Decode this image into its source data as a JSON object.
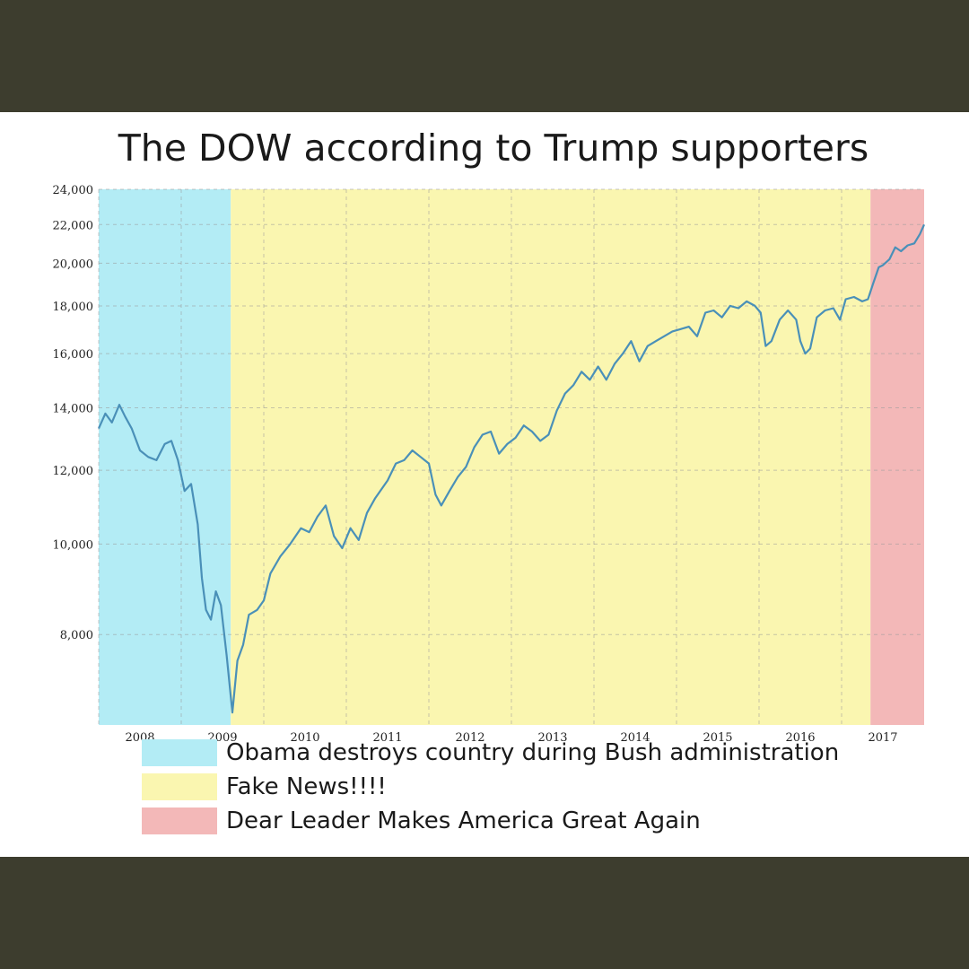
{
  "colors": {
    "frame": "#3d3d2e",
    "panel": "#ffffff",
    "line": "#4a90b8",
    "grid": "#9a9a9a"
  },
  "chart_data": {
    "type": "line",
    "title": "The DOW according to Trump supporters",
    "xlabel": "",
    "ylabel": "",
    "y_scale": "log",
    "ylim": [
      6400,
      24000
    ],
    "xlim": [
      2007.5,
      2017.5
    ],
    "grid": true,
    "y_ticks": [
      8000,
      10000,
      12000,
      14000,
      16000,
      18000,
      20000,
      22000,
      24000
    ],
    "y_tick_labels": [
      "8,000",
      "10,000",
      "12,000",
      "14,000",
      "16,000",
      "18,000",
      "20,000",
      "22,000",
      "24,000"
    ],
    "x_ticks": [
      2008,
      2009,
      2010,
      2011,
      2012,
      2013,
      2014,
      2015,
      2016,
      2017
    ],
    "x_tick_labels": [
      "2008",
      "2009",
      "2010",
      "2011",
      "2012",
      "2013",
      "2014",
      "2015",
      "2016",
      "2017"
    ],
    "regions": [
      {
        "label": "Obama destroys country during Bush administration",
        "from": 2007.5,
        "to": 2009.1,
        "color": "#b3ecf5"
      },
      {
        "label": "Fake News!!!!",
        "from": 2009.1,
        "to": 2016.85,
        "color": "#faf6b0"
      },
      {
        "label": "Dear Leader Makes America Great Again",
        "from": 2016.85,
        "to": 2017.5,
        "color": "#f3b8b8"
      }
    ],
    "series": [
      {
        "points": [
          [
            2007.5,
            13300
          ],
          [
            2007.58,
            13800
          ],
          [
            2007.66,
            13500
          ],
          [
            2007.75,
            14100
          ],
          [
            2007.82,
            13700
          ],
          [
            2007.9,
            13300
          ],
          [
            2008.0,
            12600
          ],
          [
            2008.1,
            12400
          ],
          [
            2008.2,
            12300
          ],
          [
            2008.3,
            12800
          ],
          [
            2008.38,
            12900
          ],
          [
            2008.46,
            12300
          ],
          [
            2008.54,
            11400
          ],
          [
            2008.62,
            11600
          ],
          [
            2008.7,
            10500
          ],
          [
            2008.75,
            9200
          ],
          [
            2008.8,
            8500
          ],
          [
            2008.86,
            8300
          ],
          [
            2008.92,
            8900
          ],
          [
            2008.98,
            8600
          ],
          [
            2009.05,
            7600
          ],
          [
            2009.12,
            6600
          ],
          [
            2009.18,
            7500
          ],
          [
            2009.25,
            7800
          ],
          [
            2009.32,
            8400
          ],
          [
            2009.42,
            8500
          ],
          [
            2009.5,
            8700
          ],
          [
            2009.58,
            9300
          ],
          [
            2009.7,
            9700
          ],
          [
            2009.82,
            10000
          ],
          [
            2009.95,
            10400
          ],
          [
            2010.05,
            10300
          ],
          [
            2010.15,
            10700
          ],
          [
            2010.25,
            11000
          ],
          [
            2010.35,
            10200
          ],
          [
            2010.45,
            9900
          ],
          [
            2010.55,
            10400
          ],
          [
            2010.65,
            10100
          ],
          [
            2010.75,
            10800
          ],
          [
            2010.85,
            11200
          ],
          [
            2011.0,
            11700
          ],
          [
            2011.1,
            12200
          ],
          [
            2011.2,
            12300
          ],
          [
            2011.3,
            12600
          ],
          [
            2011.4,
            12400
          ],
          [
            2011.5,
            12200
          ],
          [
            2011.58,
            11300
          ],
          [
            2011.65,
            11000
          ],
          [
            2011.75,
            11400
          ],
          [
            2011.85,
            11800
          ],
          [
            2011.95,
            12100
          ],
          [
            2012.05,
            12700
          ],
          [
            2012.15,
            13100
          ],
          [
            2012.25,
            13200
          ],
          [
            2012.35,
            12500
          ],
          [
            2012.45,
            12800
          ],
          [
            2012.55,
            13000
          ],
          [
            2012.65,
            13400
          ],
          [
            2012.75,
            13200
          ],
          [
            2012.85,
            12900
          ],
          [
            2012.95,
            13100
          ],
          [
            2013.05,
            13900
          ],
          [
            2013.15,
            14500
          ],
          [
            2013.25,
            14800
          ],
          [
            2013.35,
            15300
          ],
          [
            2013.45,
            15000
          ],
          [
            2013.55,
            15500
          ],
          [
            2013.65,
            15000
          ],
          [
            2013.75,
            15600
          ],
          [
            2013.85,
            16000
          ],
          [
            2013.95,
            16500
          ],
          [
            2014.05,
            15700
          ],
          [
            2014.15,
            16300
          ],
          [
            2014.25,
            16500
          ],
          [
            2014.35,
            16700
          ],
          [
            2014.45,
            16900
          ],
          [
            2014.55,
            17000
          ],
          [
            2014.65,
            17100
          ],
          [
            2014.75,
            16700
          ],
          [
            2014.85,
            17700
          ],
          [
            2014.95,
            17800
          ],
          [
            2015.05,
            17500
          ],
          [
            2015.15,
            18000
          ],
          [
            2015.25,
            17900
          ],
          [
            2015.35,
            18200
          ],
          [
            2015.45,
            18000
          ],
          [
            2015.52,
            17700
          ],
          [
            2015.58,
            16300
          ],
          [
            2015.65,
            16500
          ],
          [
            2015.75,
            17400
          ],
          [
            2015.85,
            17800
          ],
          [
            2015.95,
            17400
          ],
          [
            2016.0,
            16500
          ],
          [
            2016.06,
            16000
          ],
          [
            2016.12,
            16200
          ],
          [
            2016.2,
            17500
          ],
          [
            2016.3,
            17800
          ],
          [
            2016.4,
            17900
          ],
          [
            2016.48,
            17400
          ],
          [
            2016.55,
            18300
          ],
          [
            2016.65,
            18400
          ],
          [
            2016.75,
            18200
          ],
          [
            2016.82,
            18300
          ],
          [
            2016.88,
            19000
          ],
          [
            2016.95,
            19800
          ],
          [
            2017.0,
            19900
          ],
          [
            2017.08,
            20200
          ],
          [
            2017.15,
            20800
          ],
          [
            2017.22,
            20600
          ],
          [
            2017.3,
            20900
          ],
          [
            2017.38,
            21000
          ],
          [
            2017.45,
            21500
          ],
          [
            2017.5,
            22000
          ]
        ]
      }
    ]
  }
}
